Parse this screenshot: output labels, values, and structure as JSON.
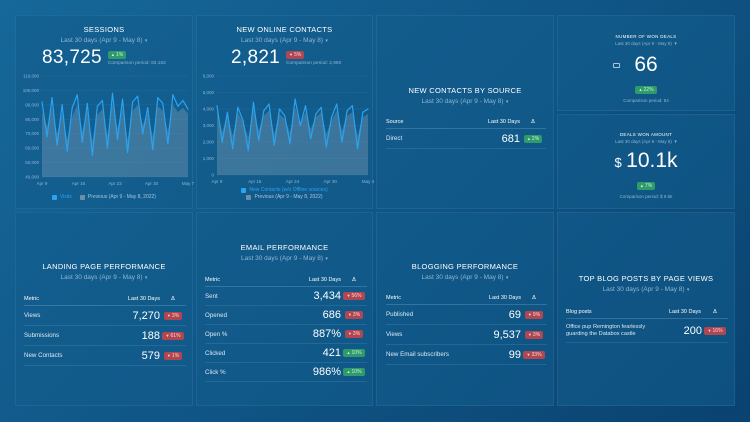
{
  "sessions": {
    "title": "SESSIONS",
    "period": "Last 30 days (Apr 9 - May 8)",
    "value": "83,725",
    "delta": "1%",
    "comparison": "Comparison period: 83,162",
    "legend": [
      "Visits",
      "Previous (Apr 9 - May 8, 2022)"
    ]
  },
  "contacts": {
    "title": "NEW ONLINE CONTACTS",
    "period": "Last 30 days (Apr 9 - May 8)",
    "value": "2,821",
    "delta": "5%",
    "comparison": "Comparison period: 2,960",
    "legend": [
      "New Contacts (w/o Offline sources)",
      "Previous (Apr 9 - May 8, 2022)"
    ]
  },
  "by_source": {
    "title": "NEW CONTACTS BY SOURCE",
    "period": "Last 30 days (Apr 9 - May 8)",
    "headers": [
      "Source",
      "Last 30 Days",
      "Δ"
    ],
    "rows": [
      {
        "label": "Direct",
        "value": "681",
        "delta": "2%",
        "dir": "up"
      }
    ]
  },
  "won_deals": {
    "title": "NUMBER OF WON DEALS",
    "period": "Last 30 days (Apr 9 - May 8)",
    "value": "66",
    "delta": "22%",
    "comparison": "Comparison period: 54"
  },
  "won_amount": {
    "title": "DEALS WON AMOUNT",
    "period": "Last 30 days (Apr 9 - May 8)",
    "currency": "$",
    "value": "10.1k",
    "delta": "7%",
    "comparison": "Comparison period: $ 9.5k"
  },
  "landing": {
    "title": "LANDING PAGE PERFORMANCE",
    "period": "Last 30 days (Apr 9 - May 8)",
    "headers": [
      "Metric",
      "Last 30 Days",
      "Δ"
    ],
    "rows": [
      {
        "label": "Views",
        "value": "7,270",
        "delta": "3%",
        "dir": "down"
      },
      {
        "label": "Submissions",
        "value": "188",
        "delta": "61%",
        "dir": "down"
      },
      {
        "label": "New Contacts",
        "value": "579",
        "delta": "1%",
        "dir": "down"
      }
    ]
  },
  "email": {
    "title": "EMAIL PERFORMANCE",
    "period": "Last 30 days (Apr 9 - May 8)",
    "headers": [
      "Metric",
      "Last 30 Days",
      "Δ"
    ],
    "rows": [
      {
        "label": "Sent",
        "value": "3,434",
        "delta": "56%",
        "dir": "down"
      },
      {
        "label": "Opened",
        "value": "686",
        "delta": "3%",
        "dir": "down"
      },
      {
        "label": "Open %",
        "value": "887%",
        "delta": "3%",
        "dir": "down"
      },
      {
        "label": "Clicked",
        "value": "421",
        "delta": "10%",
        "dir": "up"
      },
      {
        "label": "Click %",
        "value": "986%",
        "delta": "10%",
        "dir": "up"
      }
    ]
  },
  "blogging": {
    "title": "BLOGGING PERFORMANCE",
    "period": "Last 30 days (Apr 9 - May 8)",
    "headers": [
      "Metric",
      "Last 30 Days",
      "Δ"
    ],
    "rows": [
      {
        "label": "Published",
        "value": "69",
        "delta": "9%",
        "dir": "down"
      },
      {
        "label": "Views",
        "value": "9,537",
        "delta": "3%",
        "dir": "down"
      },
      {
        "label": "New Email subscribers",
        "value": "99",
        "delta": "33%",
        "dir": "down"
      }
    ]
  },
  "blog_posts": {
    "title": "TOP BLOG POSTS BY PAGE VIEWS",
    "period": "Last 30 days (Apr 9 - May 8)",
    "headers": [
      "Blog posts",
      "Last 30 Days",
      "Δ"
    ],
    "rows": [
      {
        "label": "Office pup Remington fearlessly guarding the Databox castle",
        "value": "200",
        "delta": "16%",
        "dir": "down"
      }
    ]
  },
  "colors": {
    "current": "#2aa3f0",
    "previous": "#6e8ea8",
    "up": "#2f9a6a",
    "down": "#b04650"
  },
  "chart_data": [
    {
      "type": "area",
      "title": "SESSIONS",
      "x_ticks": [
        "Apr 9",
        "Apr 16",
        "Apr 23",
        "Apr 30",
        "May 7"
      ],
      "ylim": [
        40000,
        110000
      ],
      "y_ticks": [
        "40,000",
        "50,000",
        "60,000",
        "70,000",
        "80,000",
        "90,000",
        "100,000",
        "110,000"
      ],
      "series": [
        {
          "name": "Visits",
          "values": [
            92000,
            68000,
            95000,
            62000,
            90000,
            58000,
            88000,
            97000,
            64000,
            91000,
            55000,
            89000,
            93000,
            60000,
            98000,
            66000,
            94000,
            57000,
            92000,
            96000,
            70000,
            88000,
            59000,
            95000,
            91000,
            63000,
            97000,
            89000,
            93000,
            87000
          ]
        },
        {
          "name": "Previous (Apr 9 - May 8, 2022)",
          "values": [
            85000,
            75000,
            88000,
            70000,
            84000,
            66000,
            82000,
            90000,
            72000,
            86000,
            65000,
            83000,
            87000,
            69000,
            91000,
            74000,
            88000,
            66000,
            86000,
            90000,
            76000,
            84000,
            68000,
            89000,
            86000,
            72000,
            90000,
            85000,
            88000,
            84000
          ]
        }
      ]
    },
    {
      "type": "area",
      "title": "NEW ONLINE CONTACTS",
      "x_ticks": [
        "Apr 9",
        "Apr 16",
        "Apr 24",
        "Apr 30",
        "May 4"
      ],
      "ylim": [
        0,
        6000
      ],
      "y_ticks": [
        "0",
        "500",
        "1,000",
        "1,500",
        "2,000",
        "2,500",
        "3,000",
        "3,500",
        "4,000",
        "4,500",
        "5,000",
        "5,500",
        "6,000"
      ],
      "series": [
        {
          "name": "New Contacts (w/o Offline sources)",
          "values": [
            4200,
            2000,
            3800,
            1600,
            4100,
            3300,
            1500,
            4400,
            2100,
            3900,
            4300,
            1800,
            4000,
            3600,
            1900,
            4600,
            3000,
            4200,
            2200,
            3700,
            4100,
            1700,
            3500,
            4300,
            2000,
            3900,
            4200,
            1600,
            3800,
            4000
          ]
        },
        {
          "name": "Previous (Apr 9 - May 8, 2022)",
          "values": [
            3900,
            2600,
            3600,
            2400,
            3800,
            3200,
            2300,
            4000,
            2700,
            3600,
            3900,
            2500,
            3700,
            3400,
            2600,
            4100,
            3100,
            3800,
            2800,
            3500,
            3800,
            2500,
            3300,
            3900,
            2700,
            3600,
            3800,
            2400,
            3500,
            3700
          ]
        }
      ]
    }
  ]
}
